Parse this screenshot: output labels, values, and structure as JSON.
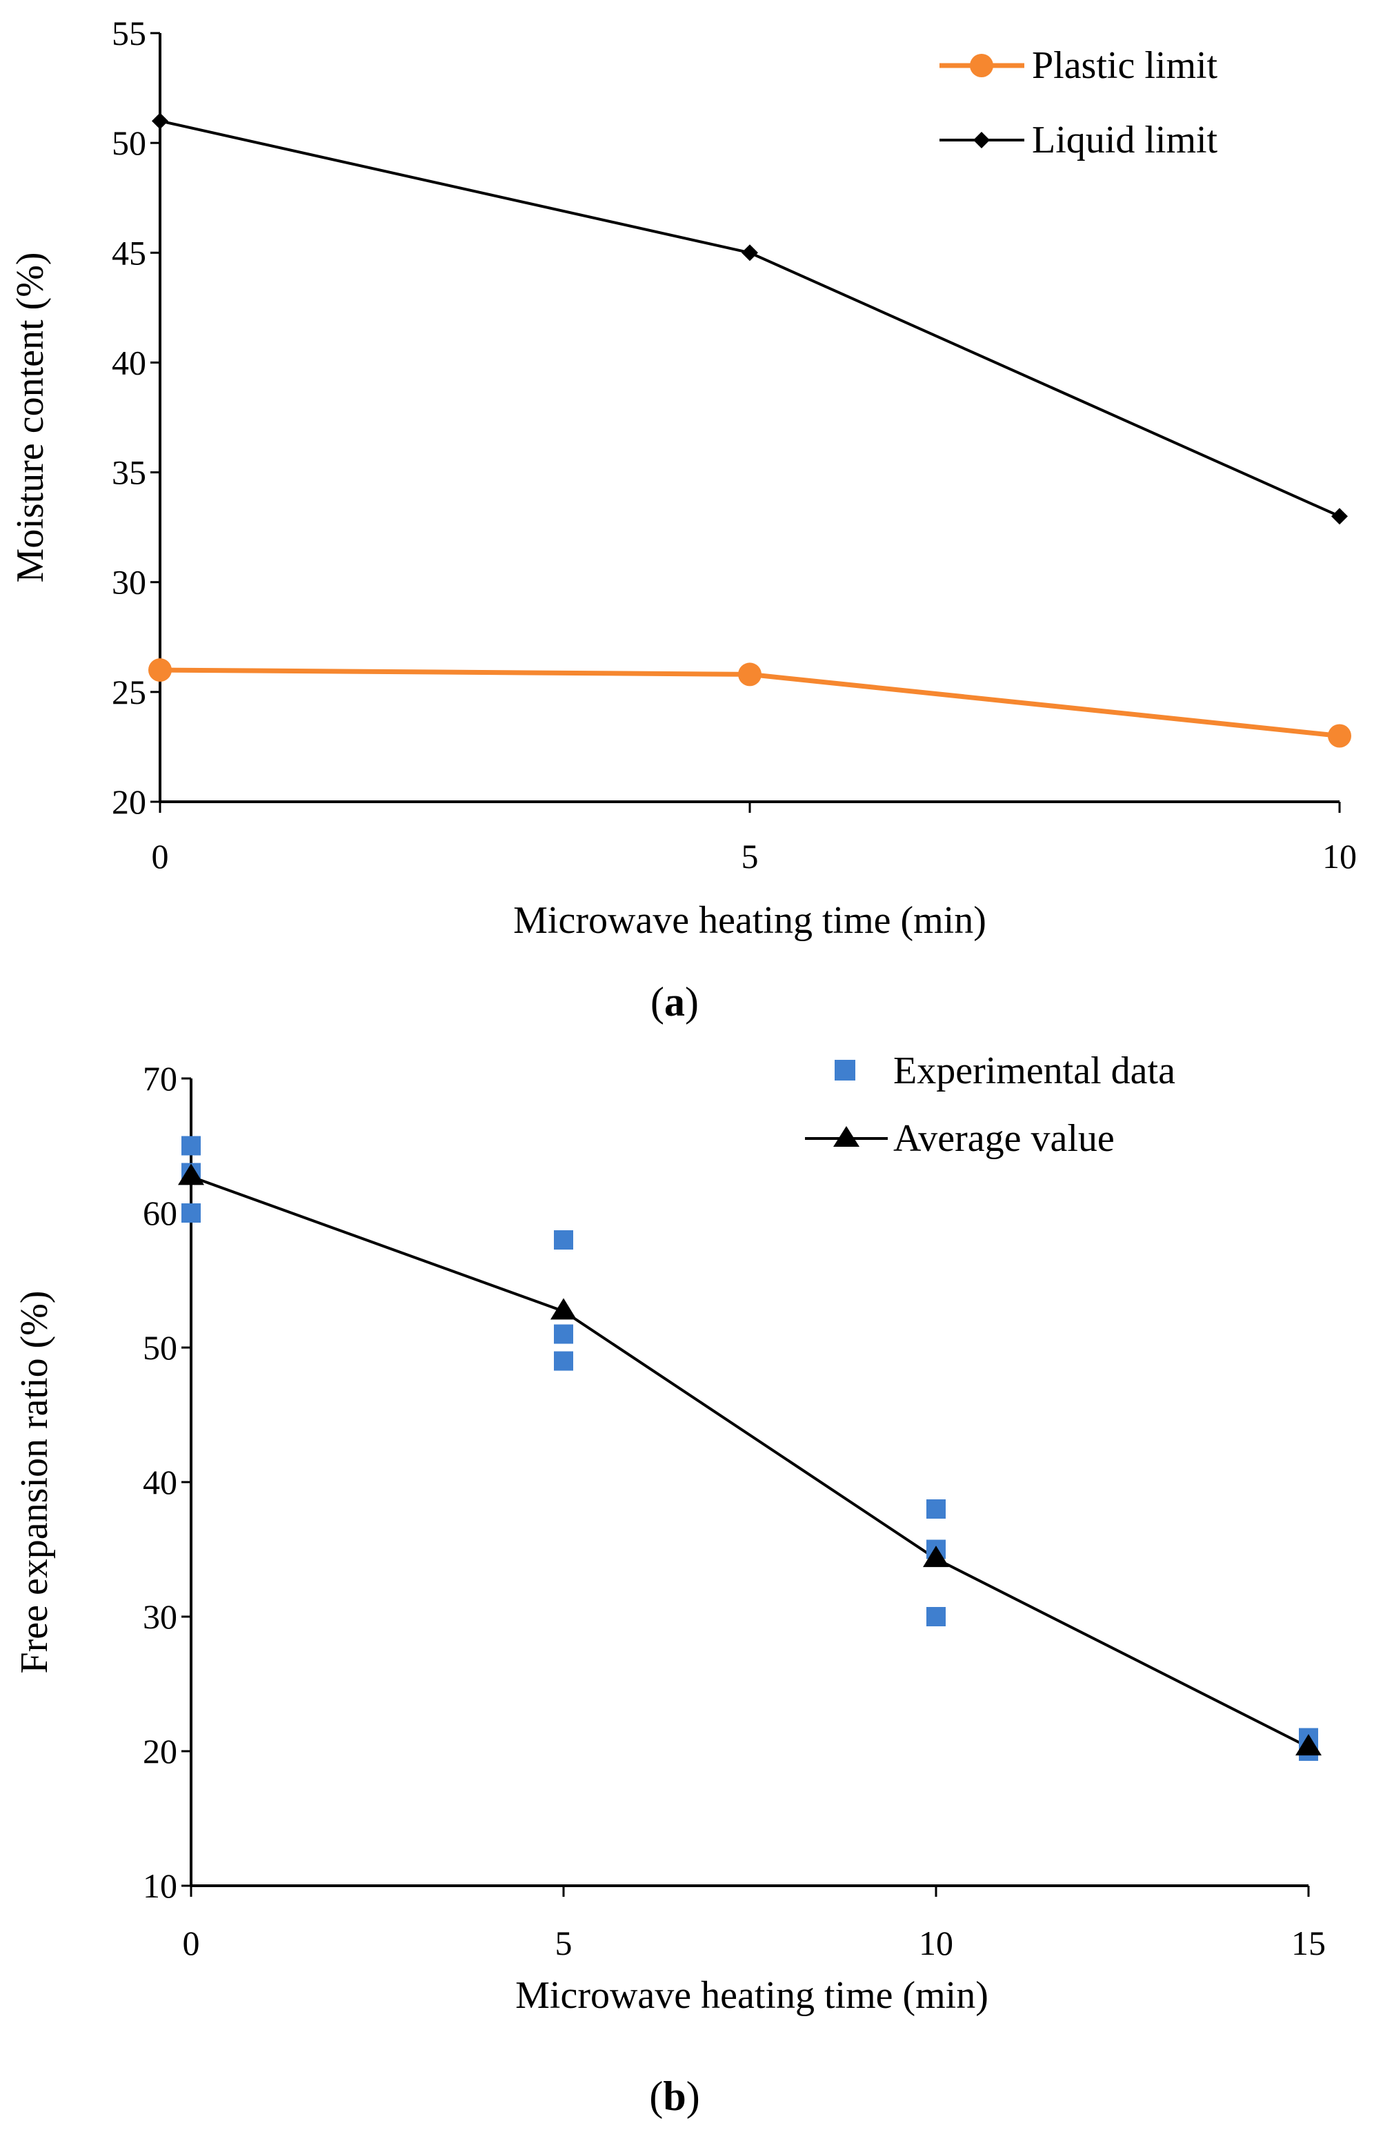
{
  "chart_data": [
    {
      "type": "line",
      "panel_label": "a",
      "title": "",
      "xlabel": "Microwave heating time (min)",
      "ylabel": "Moisture content (%)",
      "xlim": [
        0,
        10
      ],
      "ylim": [
        20,
        55
      ],
      "xticks": [
        "0",
        "5",
        "10"
      ],
      "yticks": [
        "20",
        "25",
        "30",
        "35",
        "40",
        "45",
        "50",
        "55"
      ],
      "grid": false,
      "legend_position": "top-right",
      "x": [
        0,
        5,
        10
      ],
      "series": [
        {
          "name": "Plastic limit",
          "values": [
            26,
            25.8,
            23
          ],
          "color": "#f6872f",
          "marker": "circle"
        },
        {
          "name": "Liquid limit",
          "values": [
            51,
            45,
            33
          ],
          "color": "#000000",
          "marker": "diamond"
        }
      ]
    },
    {
      "type": "scatter",
      "panel_label": "b",
      "title": "",
      "xlabel": "Microwave heating time (min)",
      "ylabel": "Free expansion ratio (%)",
      "xlim": [
        0,
        15
      ],
      "ylim": [
        10,
        70
      ],
      "xticks": [
        "0",
        "5",
        "10",
        "15"
      ],
      "yticks": [
        "10",
        "20",
        "30",
        "40",
        "50",
        "60",
        "70"
      ],
      "grid": false,
      "legend_position": "top-right",
      "series": [
        {
          "name": "Experimental data",
          "kind": "scatter",
          "color": "#3f7fcf",
          "marker": "square",
          "points": [
            [
              0,
              65
            ],
            [
              0,
              63
            ],
            [
              0,
              60
            ],
            [
              5,
              58
            ],
            [
              5,
              51
            ],
            [
              5,
              49
            ],
            [
              10,
              38
            ],
            [
              10,
              35
            ],
            [
              10,
              30
            ],
            [
              15,
              21
            ],
            [
              15,
              20
            ]
          ]
        },
        {
          "name": "Average value",
          "kind": "line",
          "color": "#000000",
          "marker": "triangle",
          "points": [
            [
              0,
              62.7
            ],
            [
              5,
              52.7
            ],
            [
              10,
              34.3
            ],
            [
              15,
              20.3
            ]
          ]
        }
      ]
    }
  ]
}
